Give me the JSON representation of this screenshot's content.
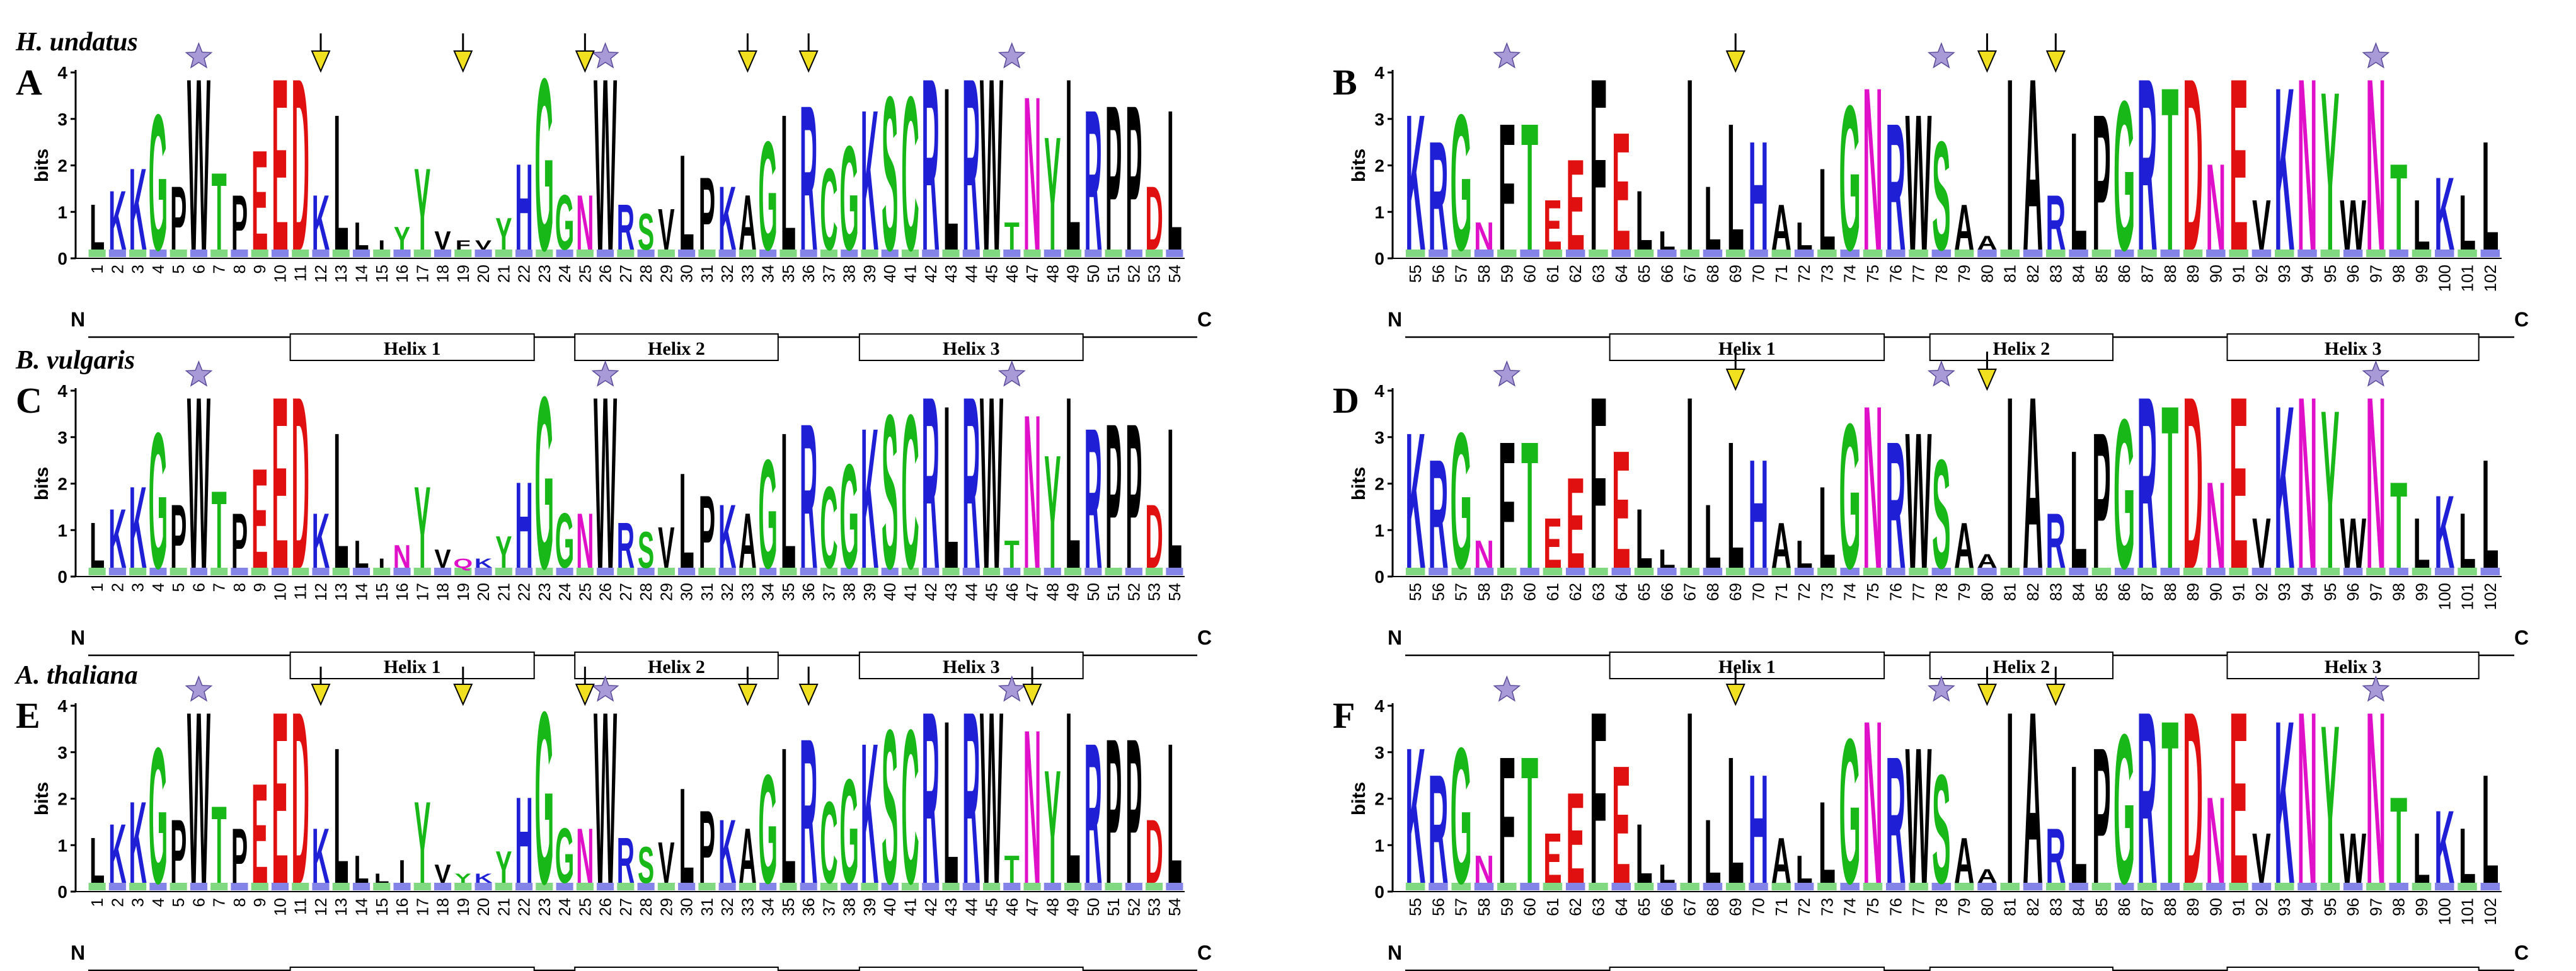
{
  "figure": {
    "rows": [
      {
        "species": "H. undatus",
        "left_panel": "A",
        "right_panel": "B"
      },
      {
        "species": "B. vulgaris",
        "left_panel": "C",
        "right_panel": "D"
      },
      {
        "species": "A. thaliana",
        "left_panel": "E",
        "right_panel": "F"
      }
    ],
    "y_axis_label": "bits",
    "y_ticks": [
      0,
      1,
      2,
      3,
      4
    ],
    "n_term": "N",
    "c_term": "C",
    "colors": {
      "K": "#1f1fd6",
      "R": "#1f1fd6",
      "H": "#1f1fd6",
      "D": "#e01010",
      "E": "#e01010",
      "N": "#e010c8",
      "Q": "#e010c8",
      "G": "#18b818",
      "S": "#18b818",
      "T": "#18b818",
      "Y": "#18b818",
      "C": "#18b818",
      "hydrophobic": "#000000",
      "star": "#a89ad6",
      "arrow": "#f0e020"
    }
  },
  "chart_data": [
    {
      "type": "sequence_logo",
      "panel": "A",
      "species": "H. undatus",
      "positions": [
        1,
        2,
        3,
        4,
        5,
        6,
        7,
        8,
        9,
        10,
        11,
        12,
        13,
        14,
        15,
        16,
        17,
        18,
        19,
        20,
        21,
        22,
        23,
        24,
        25,
        26,
        27,
        28,
        29,
        30,
        31,
        32,
        33,
        34,
        35,
        36,
        37,
        38,
        39,
        40,
        41,
        42,
        43,
        44,
        45,
        46,
        47,
        48,
        49,
        50,
        51,
        52,
        53,
        54
      ],
      "top_residues": [
        "L",
        "K",
        "K",
        "G",
        "P",
        "W",
        "T",
        "P",
        "E",
        "E",
        "D",
        "K",
        "L",
        "L",
        "I",
        "Y",
        "Y",
        "V",
        "F",
        "V",
        "Y",
        "H",
        "G",
        "G",
        "N",
        "W",
        "R",
        "S",
        "V",
        "L",
        "P",
        "K",
        "A",
        "G",
        "L",
        "R",
        "C",
        "G",
        "K",
        "S",
        "C",
        "R",
        "L",
        "R",
        "W",
        "T",
        "N",
        "Y",
        "L",
        "R",
        "P",
        "P",
        "D",
        "L"
      ],
      "heights": [
        1.2,
        1.5,
        2.0,
        3.2,
        1.6,
        4.0,
        1.9,
        1.4,
        2.4,
        4.0,
        4.0,
        1.4,
        3.2,
        0.8,
        0.4,
        0.7,
        2.0,
        0.6,
        0.4,
        0.4,
        0.9,
        2.1,
        4.0,
        1.4,
        1.4,
        4.0,
        1.2,
        1.0,
        1.1,
        2.3,
        1.8,
        1.6,
        1.4,
        2.6,
        3.2,
        3.4,
        2.0,
        2.5,
        3.3,
        3.6,
        3.6,
        4.0,
        3.8,
        4.0,
        4.0,
        0.8,
        3.6,
        2.7,
        4.0,
        3.3,
        3.4,
        3.4,
        1.6,
        3.3
      ],
      "stars": [
        6,
        26,
        46
      ],
      "arrows": [
        12,
        19,
        25,
        33,
        36
      ],
      "helices": [
        {
          "label": "Helix 1",
          "start": 11,
          "end": 22
        },
        {
          "label": "Helix 2",
          "start": 25,
          "end": 34
        },
        {
          "label": "Helix 3",
          "start": 39,
          "end": 49
        }
      ]
    },
    {
      "type": "sequence_logo",
      "panel": "B",
      "species": "H. undatus",
      "positions": [
        55,
        56,
        57,
        58,
        59,
        60,
        61,
        62,
        63,
        64,
        65,
        66,
        67,
        68,
        69,
        70,
        71,
        72,
        73,
        74,
        75,
        76,
        77,
        78,
        79,
        80,
        81,
        82,
        83,
        84,
        85,
        86,
        87,
        88,
        89,
        90,
        91,
        92,
        93,
        94,
        95,
        96,
        97,
        98,
        99,
        100,
        101,
        102
      ],
      "top_residues": [
        "K",
        "R",
        "G",
        "N",
        "F",
        "T",
        "E",
        "E",
        "F",
        "E",
        "L",
        "L",
        "I",
        "L",
        "L",
        "H",
        "A",
        "L",
        "L",
        "G",
        "N",
        "R",
        "W",
        "S",
        "A",
        "A",
        "I",
        "A",
        "R",
        "L",
        "P",
        "G",
        "R",
        "T",
        "D",
        "N",
        "E",
        "V",
        "K",
        "N",
        "Y",
        "W",
        "N",
        "T",
        "L",
        "K"
      ],
      "heights": [
        3.2,
        2.6,
        3.2,
        0.8,
        3.0,
        3.0,
        1.3,
        2.2,
        4.0,
        2.8,
        1.5,
        0.6,
        4.0,
        1.6,
        3.0,
        2.6,
        1.2,
        0.8,
        2.0,
        3.4,
        3.8,
        3.0,
        3.2,
        2.6,
        1.2,
        0.5,
        4.0,
        4.0,
        1.4,
        2.8,
        3.2,
        3.5,
        4.0,
        3.8,
        4.0,
        2.1,
        4.0,
        1.3,
        3.8,
        4.0,
        3.7,
        1.3,
        4.0,
        2.1,
        1.3,
        1.8,
        1.4,
        2.6
      ],
      "stars": [
        59,
        78,
        97
      ],
      "arrows": [
        69,
        80,
        83
      ],
      "helices": [
        {
          "label": "Helix 1",
          "start": 64,
          "end": 75
        },
        {
          "label": "Helix 2",
          "start": 78,
          "end": 85
        },
        {
          "label": "Helix 3",
          "start": 91,
          "end": 101
        }
      ]
    },
    {
      "type": "sequence_logo",
      "panel": "C",
      "species": "B. vulgaris",
      "positions": [
        1,
        2,
        3,
        4,
        5,
        6,
        7,
        8,
        9,
        10,
        11,
        12,
        13,
        14,
        15,
        16,
        17,
        18,
        19,
        20,
        21,
        22,
        23,
        24,
        25,
        26,
        27,
        28,
        29,
        30,
        31,
        32,
        33,
        34,
        35,
        36,
        37,
        38,
        39,
        40,
        41,
        42,
        43,
        44,
        45,
        46,
        47,
        48,
        49,
        50,
        51,
        52,
        53,
        54
      ],
      "top_residues": [
        "L",
        "K",
        "K",
        "G",
        "P",
        "W",
        "T",
        "P",
        "E",
        "E",
        "D",
        "K",
        "L",
        "L",
        "I",
        "N",
        "Y",
        "V",
        "Q",
        "K",
        "Y",
        "H",
        "G",
        "G",
        "N",
        "W",
        "R",
        "S",
        "V",
        "L",
        "P",
        "K",
        "A",
        "G",
        "L",
        "R",
        "C",
        "G",
        "K",
        "S",
        "C",
        "R",
        "L",
        "R",
        "W",
        "T",
        "N",
        "Y",
        "L",
        "R",
        "P",
        "P",
        "D",
        "L"
      ],
      "heights": [
        1.2,
        1.5,
        2.0,
        3.2,
        1.6,
        4.0,
        1.9,
        1.4,
        2.4,
        4.0,
        4.0,
        1.4,
        3.2,
        0.8,
        0.4,
        0.7,
        2.0,
        0.6,
        0.4,
        0.4,
        0.9,
        2.1,
        4.0,
        1.4,
        1.4,
        4.0,
        1.2,
        1.0,
        1.1,
        2.3,
        1.8,
        1.6,
        1.4,
        2.6,
        3.2,
        3.4,
        2.0,
        2.5,
        3.3,
        3.6,
        3.6,
        4.0,
        3.8,
        4.0,
        4.0,
        0.8,
        3.6,
        2.7,
        4.0,
        3.3,
        3.4,
        3.4,
        1.6,
        3.3
      ],
      "stars": [
        6,
        26,
        46
      ],
      "arrows": [],
      "helices": [
        {
          "label": "Helix 1",
          "start": 11,
          "end": 22
        },
        {
          "label": "Helix 2",
          "start": 25,
          "end": 34
        },
        {
          "label": "Helix 3",
          "start": 39,
          "end": 49
        }
      ]
    },
    {
      "type": "sequence_logo",
      "panel": "D",
      "species": "B. vulgaris",
      "positions": [
        55,
        56,
        57,
        58,
        59,
        60,
        61,
        62,
        63,
        64,
        65,
        66,
        67,
        68,
        69,
        70,
        71,
        72,
        73,
        74,
        75,
        76,
        77,
        78,
        79,
        80,
        81,
        82,
        83,
        84,
        85,
        86,
        87,
        88,
        89,
        90,
        91,
        92,
        93,
        94,
        95,
        96,
        97,
        98,
        99,
        100,
        101,
        102
      ],
      "top_residues": [
        "K",
        "R",
        "G",
        "N",
        "F",
        "T",
        "E",
        "E",
        "F",
        "E",
        "L",
        "L",
        "I",
        "L",
        "L",
        "H",
        "A",
        "L",
        "L",
        "G",
        "N",
        "R",
        "W",
        "S",
        "A",
        "A",
        "I",
        "A",
        "R",
        "L",
        "P",
        "G",
        "R",
        "T",
        "D",
        "N",
        "E",
        "V",
        "K",
        "N",
        "Y",
        "W",
        "N",
        "T",
        "L",
        "K"
      ],
      "heights": [
        3.2,
        2.6,
        3.2,
        0.8,
        3.0,
        3.0,
        1.3,
        2.2,
        4.0,
        2.8,
        1.5,
        0.6,
        4.0,
        1.6,
        3.0,
        2.6,
        1.2,
        0.8,
        2.0,
        3.4,
        3.8,
        3.0,
        3.2,
        2.6,
        1.2,
        0.5,
        4.0,
        4.0,
        1.4,
        2.8,
        3.2,
        3.5,
        4.0,
        3.8,
        4.0,
        2.1,
        4.0,
        1.3,
        3.8,
        4.0,
        3.7,
        1.3,
        4.0,
        2.1,
        1.3,
        1.8,
        1.4,
        2.6
      ],
      "stars": [
        59,
        78,
        97
      ],
      "arrows": [
        69,
        80
      ],
      "helices": [
        {
          "label": "Helix 1",
          "start": 64,
          "end": 75
        },
        {
          "label": "Helix 2",
          "start": 78,
          "end": 85
        },
        {
          "label": "Helix 3",
          "start": 91,
          "end": 101
        }
      ]
    },
    {
      "type": "sequence_logo",
      "panel": "E",
      "species": "A. thaliana",
      "positions": [
        1,
        2,
        3,
        4,
        5,
        6,
        7,
        8,
        9,
        10,
        11,
        12,
        13,
        14,
        15,
        16,
        17,
        18,
        19,
        20,
        21,
        22,
        23,
        24,
        25,
        26,
        27,
        28,
        29,
        30,
        31,
        32,
        33,
        34,
        35,
        36,
        37,
        38,
        39,
        40,
        41,
        42,
        43,
        44,
        45,
        46,
        47,
        48,
        49,
        50,
        51,
        52,
        53,
        54
      ],
      "top_residues": [
        "L",
        "K",
        "K",
        "G",
        "P",
        "W",
        "T",
        "P",
        "E",
        "E",
        "D",
        "K",
        "L",
        "L",
        "L",
        "I",
        "Y",
        "V",
        "Y",
        "K",
        "Y",
        "H",
        "G",
        "G",
        "N",
        "W",
        "R",
        "S",
        "V",
        "L",
        "P",
        "K",
        "A",
        "G",
        "L",
        "R",
        "C",
        "G",
        "K",
        "S",
        "C",
        "R",
        "L",
        "R",
        "W",
        "T",
        "N",
        "Y",
        "L",
        "R",
        "P",
        "P",
        "D",
        "L"
      ],
      "heights": [
        1.2,
        1.5,
        2.0,
        3.2,
        1.6,
        4.0,
        1.9,
        1.4,
        2.4,
        4.0,
        4.0,
        1.4,
        3.2,
        0.8,
        0.4,
        0.7,
        2.0,
        0.6,
        0.4,
        0.4,
        0.9,
        2.1,
        4.0,
        1.4,
        1.4,
        4.0,
        1.2,
        1.0,
        1.1,
        2.3,
        1.8,
        1.6,
        1.4,
        2.6,
        3.2,
        3.4,
        2.0,
        2.5,
        3.3,
        3.6,
        3.6,
        4.0,
        3.8,
        4.0,
        4.0,
        0.8,
        3.6,
        2.7,
        4.0,
        3.3,
        3.4,
        3.4,
        1.6,
        3.3
      ],
      "stars": [
        6,
        26,
        46
      ],
      "arrows": [
        12,
        19,
        25,
        33,
        36,
        47
      ],
      "helices": [
        {
          "label": "Helix 1",
          "start": 11,
          "end": 22
        },
        {
          "label": "Helix 2",
          "start": 25,
          "end": 34
        },
        {
          "label": "Helix 3",
          "start": 39,
          "end": 49
        }
      ]
    },
    {
      "type": "sequence_logo",
      "panel": "F",
      "species": "A. thaliana",
      "positions": [
        55,
        56,
        57,
        58,
        59,
        60,
        61,
        62,
        63,
        64,
        65,
        66,
        67,
        68,
        69,
        70,
        71,
        72,
        73,
        74,
        75,
        76,
        77,
        78,
        79,
        80,
        81,
        82,
        83,
        84,
        85,
        86,
        87,
        88,
        89,
        90,
        91,
        92,
        93,
        94,
        95,
        96,
        97,
        98,
        99,
        100,
        101,
        102
      ],
      "top_residues": [
        "K",
        "R",
        "G",
        "N",
        "F",
        "T",
        "E",
        "E",
        "F",
        "E",
        "L",
        "L",
        "I",
        "L",
        "L",
        "H",
        "A",
        "L",
        "L",
        "G",
        "N",
        "R",
        "W",
        "S",
        "A",
        "A",
        "I",
        "A",
        "R",
        "L",
        "P",
        "G",
        "R",
        "T",
        "D",
        "N",
        "E",
        "V",
        "K",
        "N",
        "Y",
        "W",
        "N",
        "T",
        "L",
        "K"
      ],
      "heights": [
        3.2,
        2.6,
        3.2,
        0.8,
        3.0,
        3.0,
        1.3,
        2.2,
        4.0,
        2.8,
        1.5,
        0.6,
        4.0,
        1.6,
        3.0,
        2.6,
        1.2,
        0.8,
        2.0,
        3.4,
        3.8,
        3.0,
        3.2,
        2.6,
        1.2,
        0.5,
        4.0,
        4.0,
        1.4,
        2.8,
        3.2,
        3.5,
        4.0,
        3.8,
        4.0,
        2.1,
        4.0,
        1.3,
        3.8,
        4.0,
        3.7,
        1.3,
        4.0,
        2.1,
        1.3,
        1.8,
        1.4,
        2.6
      ],
      "stars": [
        59,
        78,
        97
      ],
      "arrows": [
        69,
        80,
        83
      ],
      "helices": [
        {
          "label": "Helix 1",
          "start": 64,
          "end": 75
        },
        {
          "label": "Helix 2",
          "start": 78,
          "end": 85
        },
        {
          "label": "Helix 3",
          "start": 91,
          "end": 101
        }
      ]
    }
  ]
}
